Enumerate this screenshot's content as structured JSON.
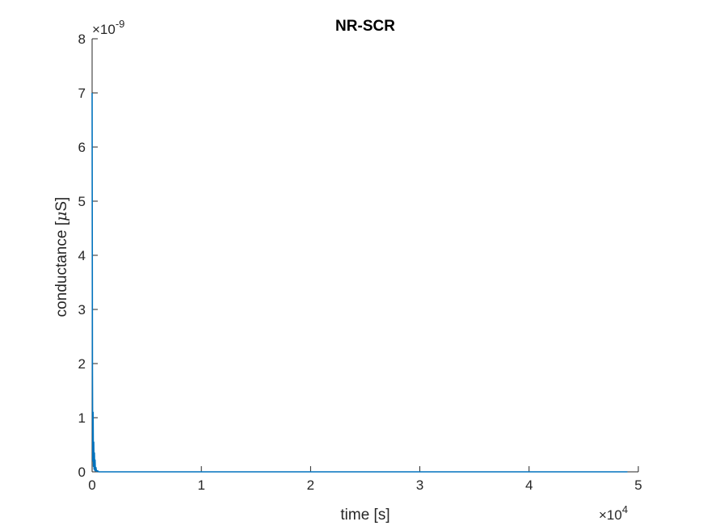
{
  "chart_data": {
    "type": "line",
    "title": "NR-SCR",
    "xlabel": "time [s]",
    "ylabel_prefix": "conductance [",
    "ylabel_mu": "μ",
    "ylabel_suffix": "S]",
    "xlim": [
      0,
      5
    ],
    "ylim": [
      0,
      8
    ],
    "x_ticks": [
      0,
      1,
      2,
      3,
      4,
      5
    ],
    "y_ticks": [
      0,
      1,
      2,
      3,
      4,
      5,
      6,
      7,
      8
    ],
    "x_multiplier": {
      "base": "×10",
      "exponent": "4"
    },
    "y_multiplier": {
      "base": "×10",
      "exponent": "-9"
    },
    "grid": false,
    "line_color": "#0072BD",
    "series": [
      {
        "x": [
          0,
          0.003,
          0.006,
          0.009,
          0.012,
          0.015,
          0.018,
          0.021,
          0.024,
          0.027,
          0.03,
          0.035,
          0.04,
          0.05,
          0.06,
          0.2,
          1,
          2,
          3,
          4,
          4.9
        ],
        "y": [
          7.0,
          1.9,
          0.2,
          1.1,
          0.1,
          0.55,
          0.05,
          0.35,
          0.03,
          0.22,
          0.02,
          0.08,
          0.01,
          0.02,
          0.0,
          0.0,
          0.0,
          0.0,
          0.0,
          0.0,
          0.0
        ]
      }
    ]
  }
}
